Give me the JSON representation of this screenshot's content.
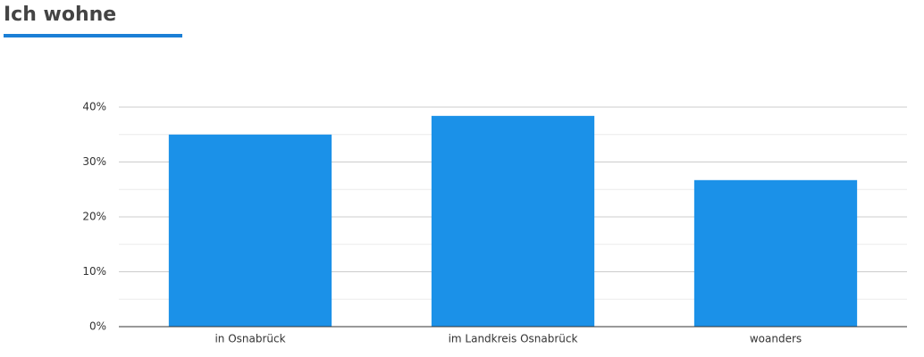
{
  "chart_data": {
    "type": "bar",
    "title": "Ich wohne",
    "categories": [
      "in Osnabrück",
      "im Landkreis Osnabrück",
      "woanders"
    ],
    "values": [
      35,
      38.4,
      26.7
    ],
    "color": "#1b91e8",
    "ylim": [
      0,
      40
    ],
    "yticks": [
      {
        "value": 0,
        "label": "0%"
      },
      {
        "value": 10,
        "label": "10%"
      },
      {
        "value": 20,
        "label": "20%"
      },
      {
        "value": 30,
        "label": "30%"
      },
      {
        "value": 40,
        "label": "40%"
      }
    ],
    "minor_yticks": [
      5,
      15,
      25,
      35
    ],
    "grid": true
  }
}
